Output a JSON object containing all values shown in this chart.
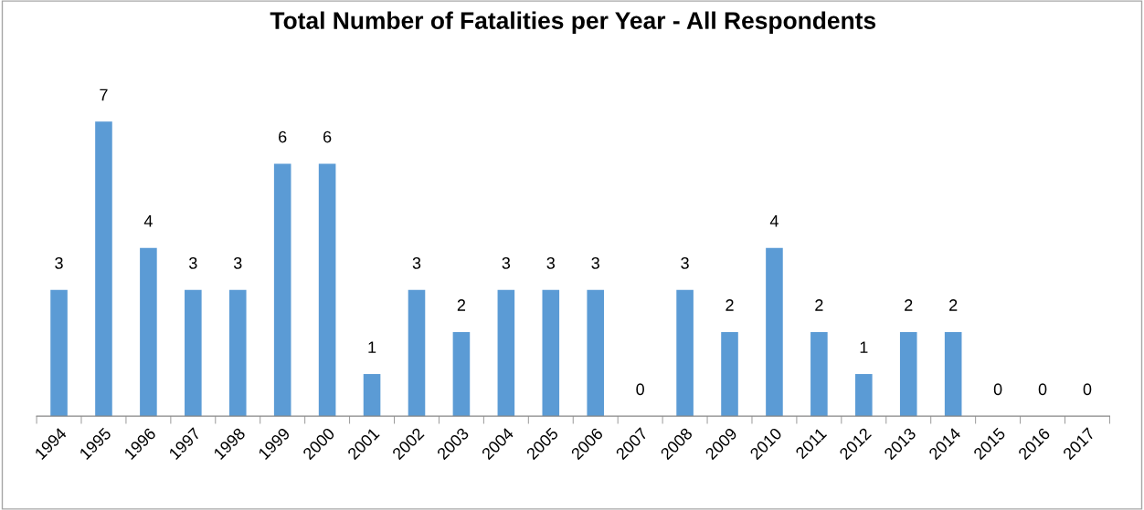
{
  "chart_data": {
    "type": "bar",
    "title": "Total Number of Fatalities per Year - All Respondents",
    "categories": [
      "1994",
      "1995",
      "1996",
      "1997",
      "1998",
      "1999",
      "2000",
      "2001",
      "2002",
      "2003",
      "2004",
      "2005",
      "2006",
      "2007",
      "2008",
      "2009",
      "2010",
      "2011",
      "2012",
      "2013",
      "2014",
      "2015",
      "2016",
      "2017"
    ],
    "values": [
      3,
      7,
      4,
      3,
      3,
      6,
      6,
      1,
      3,
      2,
      3,
      3,
      3,
      0,
      3,
      2,
      4,
      2,
      1,
      2,
      2,
      0,
      0,
      0
    ],
    "color": "#5b9bd5",
    "data_labels": true,
    "grid": false,
    "legend": false
  }
}
